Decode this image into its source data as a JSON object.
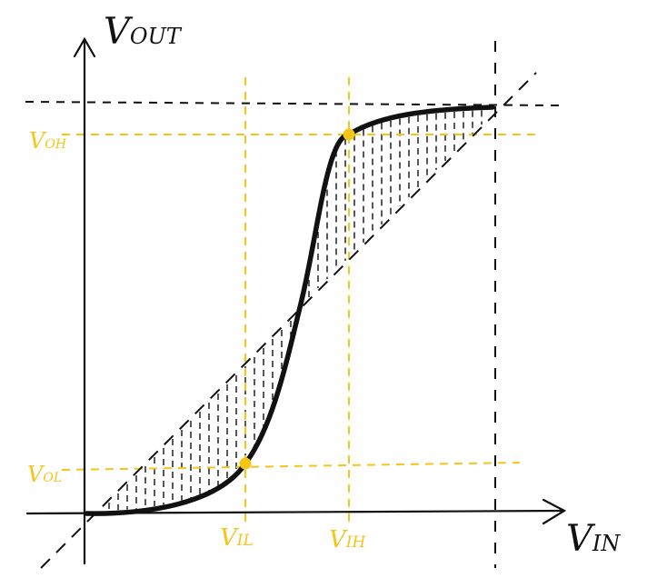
{
  "axes": {
    "y_label_main": "V",
    "y_label_sub": "OUT",
    "x_label_main": "V",
    "x_label_sub": "IN"
  },
  "markers": {
    "voh_main": "V",
    "voh_sub": "OH",
    "vol_main": "V",
    "vol_sub": "OL",
    "vil_main": "V",
    "vil_sub": "IL",
    "vih_main": "V",
    "vih_sub": "IH"
  },
  "colors": {
    "ink": "#111111",
    "highlight": "#f5c518"
  }
}
